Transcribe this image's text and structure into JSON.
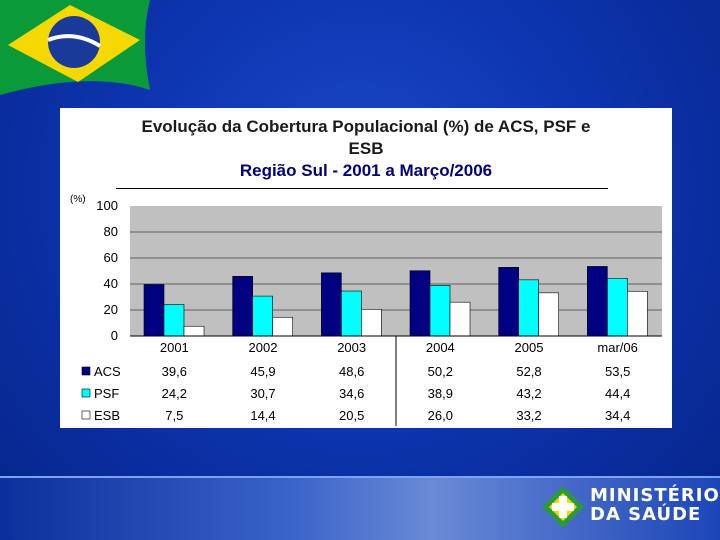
{
  "title": {
    "line1": "Evolução da Cobertura Populacional (%) de ACS, PSF e",
    "line2": "ESB",
    "line3": "Região Sul - 2001 a Março/2006"
  },
  "colors": {
    "background": "#0a2e9e",
    "plot_area": "#c0c0c0",
    "acs": "#000080",
    "psf": "#00ffff",
    "esb": "#ffffff",
    "title_line3": "#000080"
  },
  "chart_data": {
    "type": "bar",
    "ylabel": "(%)",
    "ylim": [
      0,
      100
    ],
    "yticks": [
      0,
      20,
      40,
      60,
      80,
      100
    ],
    "categories": [
      "2001",
      "2002",
      "2003",
      "2004",
      "2005",
      "mar/06"
    ],
    "series": [
      {
        "name": "ACS",
        "color": "#000080",
        "values": [
          39.6,
          45.9,
          48.6,
          50.2,
          52.8,
          53.5
        ],
        "labels": [
          "39,6",
          "45,9",
          "48,6",
          "50,2",
          "52,8",
          "53,5"
        ]
      },
      {
        "name": "PSF",
        "color": "#00ffff",
        "values": [
          24.2,
          30.7,
          34.6,
          38.9,
          43.2,
          44.4
        ],
        "labels": [
          "24,2",
          "30,7",
          "34,6",
          "38,9",
          "43,2",
          "44,4"
        ]
      },
      {
        "name": "ESB",
        "color": "#ffffff",
        "values": [
          7.5,
          14.4,
          20.5,
          26.0,
          33.2,
          34.4
        ],
        "labels": [
          "7,5",
          "14,4",
          "20,5",
          "26,0",
          "33,2",
          "34,4"
        ]
      }
    ],
    "grid": true,
    "legend": "data-table-below"
  },
  "footer": {
    "line1": "MINISTÉRIO",
    "line2": "DA SAÚDE"
  },
  "icons": {
    "flag": "brazil-flag-icon",
    "logo": "ministerio-saude-logo-icon"
  }
}
